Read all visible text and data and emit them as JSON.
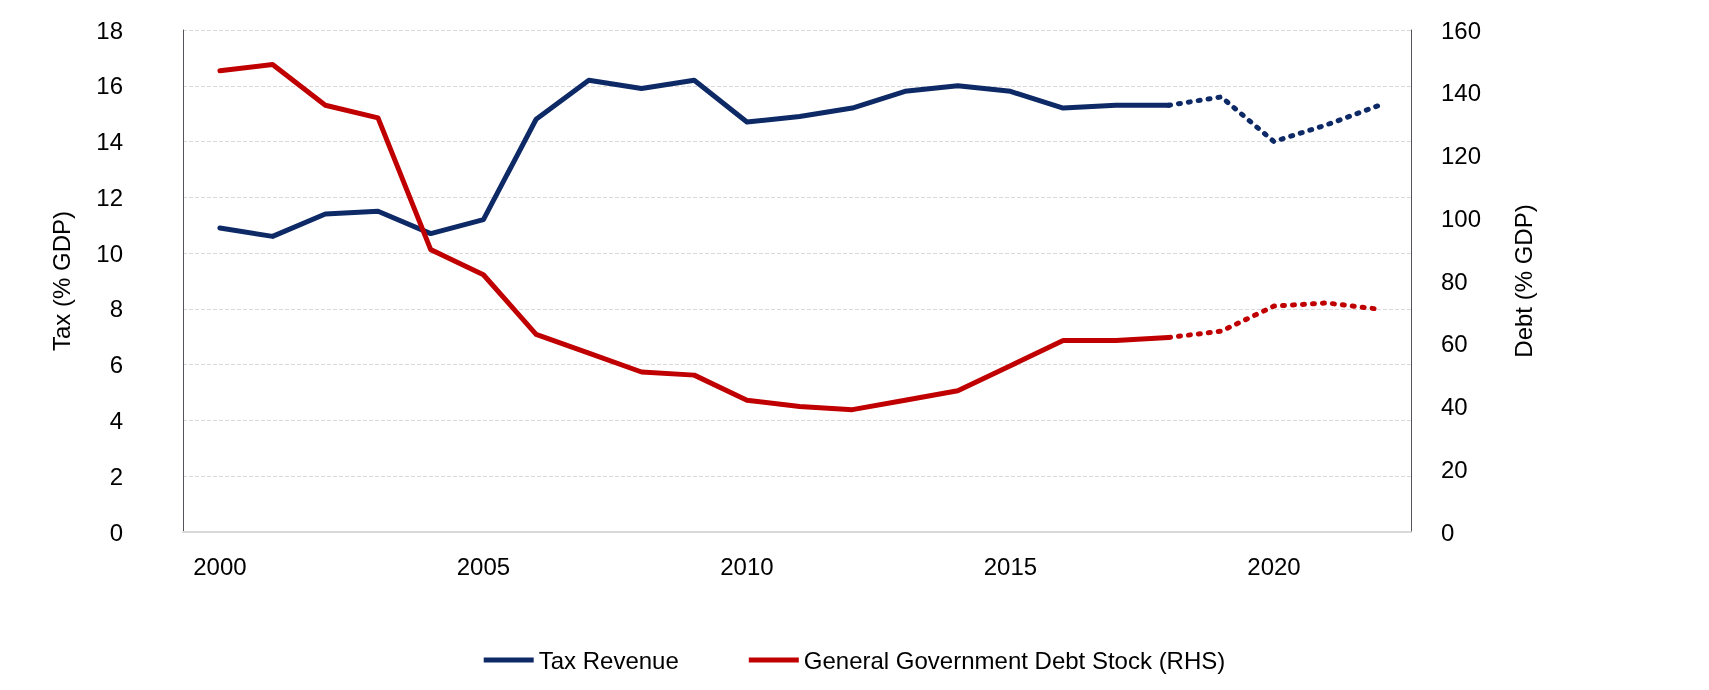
{
  "chart_data": {
    "type": "line",
    "ylabel": "Tax (% GDP)",
    "y2label": "Debt (% GDP)",
    "xlim": [
      1999.3,
      2022.6
    ],
    "xticks": [
      2000,
      2005,
      2010,
      2015,
      2020
    ],
    "ylim": [
      0,
      18
    ],
    "yticks": [
      0,
      2,
      4,
      6,
      8,
      10,
      12,
      14,
      16,
      18
    ],
    "y2lim": [
      0,
      160
    ],
    "y2ticks": [
      0,
      20,
      40,
      60,
      80,
      100,
      120,
      140,
      160
    ],
    "grid": "y",
    "legend": "bottom",
    "marker": "none",
    "series": [
      {
        "name": "Tax Revenue",
        "color": "#0e2a66",
        "line_style": "solid",
        "x": [
          2000,
          2001,
          2002,
          2003,
          2004,
          2005,
          2006,
          2007,
          2008,
          2009,
          2010,
          2011,
          2012,
          2013,
          2014,
          2015,
          2016,
          2017,
          2018
        ],
        "values": [
          10.9,
          10.6,
          11.4,
          11.5,
          10.7,
          11.2,
          14.8,
          16.2,
          15.9,
          16.2,
          14.7,
          14.9,
          15.2,
          15.8,
          16.0,
          15.8,
          15.2,
          15.3,
          15.3
        ]
      },
      {
        "name": "General Government Debt Stock (RHS)",
        "color": "#c00000",
        "line_style": "solid",
        "axis": "y2",
        "x": [
          2000,
          2001,
          2002,
          2003,
          2004,
          2005,
          2006,
          2007,
          2008,
          2009,
          2010,
          2011,
          2012,
          2013,
          2014,
          2015,
          2016,
          2017,
          2018
        ],
        "values": [
          147,
          149,
          136,
          132,
          90,
          82,
          63,
          57,
          51,
          50,
          42,
          40,
          39,
          42,
          45,
          53,
          61,
          61,
          62
        ]
      },
      {
        "color": "#0e2a66",
        "line_style": "dotted",
        "x": [
          2018,
          2019,
          2020,
          2021,
          2022
        ],
        "values": [
          15.3,
          15.6,
          14.0,
          14.6,
          15.3
        ]
      },
      {
        "color": "#c00000",
        "line_style": "dotted",
        "axis": "y2",
        "x": [
          2018,
          2019,
          2020,
          2021,
          2022
        ],
        "values": [
          62,
          64,
          72,
          73,
          71
        ]
      }
    ]
  }
}
